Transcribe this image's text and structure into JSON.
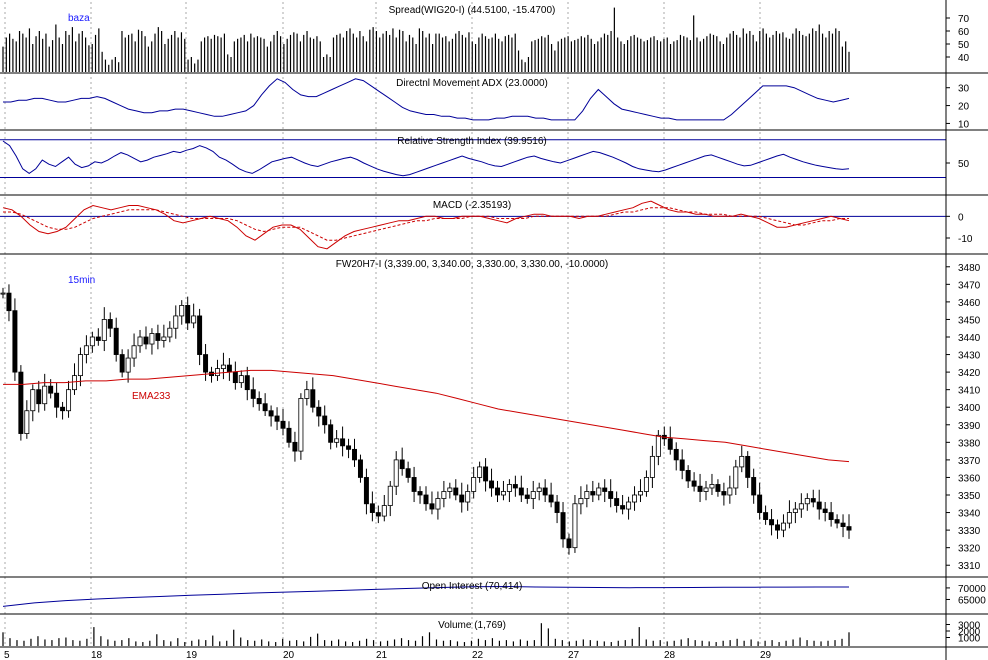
{
  "chart_data": {
    "type": "multi-panel-financial-chart",
    "colors": {
      "bars": "#000000",
      "indicator_blue": "#000099",
      "ema": "#cc0000",
      "annotation_blue": "#1a1aff",
      "grid": "#aaaaaa"
    },
    "date_labels": [
      "5",
      "18",
      "19",
      "20",
      "21",
      "22",
      "27",
      "28",
      "29"
    ],
    "panels": [
      {
        "key": "spread",
        "title": "Spread(WIG20-I) (44.5100, -15.4700)",
        "annotation": "baza",
        "type": "bar",
        "ylim": [
          30,
          80
        ],
        "yticks": [
          40,
          50,
          60,
          70
        ],
        "values": [
          48,
          55,
          58,
          54,
          52,
          60,
          58,
          55,
          62,
          50,
          56,
          60,
          54,
          58,
          48,
          53,
          65,
          55,
          50,
          60,
          57,
          63,
          52,
          58,
          60,
          55,
          49,
          50,
          57,
          62,
          44,
          38,
          34,
          38,
          40,
          36,
          60,
          55,
          57,
          58,
          52,
          61,
          60,
          56,
          48,
          52,
          58,
          63,
          60,
          50,
          54,
          57,
          60,
          55,
          59,
          54,
          38,
          40,
          35,
          38,
          52,
          55,
          56,
          54,
          57,
          56,
          55,
          58,
          42,
          40,
          52,
          54,
          55,
          57,
          52,
          58,
          55,
          56,
          55,
          54,
          48,
          52,
          57,
          60,
          56,
          50,
          54,
          57,
          59,
          58,
          52,
          57,
          60,
          55,
          54,
          56,
          52,
          40,
          42,
          40,
          55,
          57,
          58,
          55,
          60,
          62,
          58,
          55,
          60,
          56,
          52,
          61,
          63,
          60,
          55,
          58,
          60,
          57,
          62,
          55,
          61,
          60,
          52,
          57,
          55,
          50,
          62,
          60,
          55,
          58,
          50,
          58,
          58,
          55,
          56,
          52,
          54,
          58,
          60,
          57,
          55,
          59,
          52,
          50,
          55,
          58,
          56,
          54,
          55,
          58,
          54,
          52,
          56,
          57,
          55,
          58,
          45,
          38,
          36,
          40,
          52,
          53,
          54,
          56,
          55,
          57,
          50,
          45,
          52,
          54,
          55,
          56,
          52,
          53,
          54,
          56,
          55,
          57,
          54,
          50,
          52,
          55,
          58,
          57,
          60,
          78,
          55,
          52,
          50,
          53,
          56,
          57,
          55,
          54,
          52,
          53,
          55,
          56,
          53,
          52,
          54,
          55,
          50,
          52,
          53,
          57,
          56,
          55,
          53,
          72,
          55,
          52,
          54,
          56,
          58,
          57,
          56,
          52,
          50,
          55,
          58,
          60,
          57,
          55,
          62,
          58,
          60,
          57,
          52,
          60,
          62,
          58,
          55,
          57,
          60,
          58,
          59,
          55,
          54,
          58,
          62,
          60,
          57,
          56,
          58,
          62,
          60,
          65,
          58,
          55,
          60,
          58,
          62,
          60,
          48,
          52,
          44
        ]
      },
      {
        "key": "adx",
        "title": "Directnl Movement ADX (23.0000)",
        "type": "line",
        "ylim": [
          8,
          36
        ],
        "yticks": [
          10,
          20,
          30
        ],
        "series": [
          {
            "values": [
              22,
              22,
              23,
              23,
              24,
              24,
              23,
              22,
              22,
              23,
              24,
              24,
              25,
              24,
              22,
              20,
              18,
              17,
              16,
              16,
              17,
              17,
              18,
              18,
              17,
              16,
              15,
              14,
              14,
              15,
              16,
              17,
              20,
              26,
              31,
              35,
              33,
              29,
              26,
              25,
              25,
              27,
              29,
              31,
              33,
              35,
              34,
              31,
              28,
              25,
              22,
              19,
              17,
              16,
              15,
              15,
              14,
              14,
              13,
              13,
              12,
              12,
              12,
              13,
              13,
              14,
              14,
              14,
              13,
              13,
              12,
              12,
              12,
              12,
              17,
              24,
              29,
              25,
              21,
              18,
              17,
              16,
              15,
              14,
              13,
              13,
              12,
              12,
              12,
              12,
              12,
              12,
              12,
              15,
              19,
              23,
              27,
              31,
              31,
              31,
              31,
              30,
              28,
              26,
              24,
              23,
              22,
              23,
              24
            ]
          }
        ]
      },
      {
        "key": "rsi",
        "title": "Relative Strength Index (39.9516)",
        "type": "line",
        "ylim": [
          0,
          100
        ],
        "yticks": [
          50
        ],
        "reference_lines": [
          25,
          90
        ],
        "series": [
          {
            "values": [
              88,
              80,
              62,
              40,
              32,
              40,
              55,
              48,
              44,
              52,
              60,
              48,
              42,
              45,
              52,
              50,
              55,
              62,
              68,
              64,
              58,
              52,
              55,
              60,
              63,
              66,
              70,
              68,
              72,
              75,
              80,
              76,
              70,
              60,
              55,
              48,
              40,
              35,
              32,
              38,
              45,
              52,
              55,
              58,
              60,
              55,
              50,
              46,
              44,
              48,
              52,
              55,
              58,
              60,
              56,
              50,
              45,
              40,
              36,
              33,
              30,
              28,
              30,
              34,
              38,
              42,
              46,
              50,
              54,
              58,
              62,
              58,
              55,
              52,
              48,
              45,
              44,
              48,
              52,
              56,
              60,
              62,
              58,
              55,
              52,
              50,
              54,
              58,
              62,
              66,
              70,
              68,
              64,
              60,
              55,
              50,
              44,
              40,
              38,
              36,
              35,
              38,
              42,
              46,
              50,
              54,
              58,
              62,
              64,
              60,
              56,
              52,
              48,
              45,
              46,
              50,
              54,
              58,
              62,
              65,
              60,
              56,
              52,
              49,
              46,
              44,
              42,
              40,
              39,
              40
            ]
          }
        ]
      },
      {
        "key": "macd",
        "title": "MACD (-2.35193)",
        "type": "line",
        "ylim": [
          -16,
          8
        ],
        "yticks": [
          0,
          -10
        ],
        "reference_lines": [
          0
        ],
        "series": [
          {
            "values": [
              4,
              3,
              0,
              -4,
              -7,
              -8,
              -7,
              -5,
              -1,
              3,
              5,
              4,
              3,
              4,
              5,
              5,
              4,
              3,
              1,
              -2,
              -3,
              -2,
              -1,
              0,
              -1,
              -2,
              -5,
              -9,
              -11,
              -8,
              -5,
              -4,
              -4,
              -6,
              -10,
              -14,
              -15,
              -12,
              -9,
              -7,
              -6,
              -5,
              -4,
              -3,
              -2,
              -2,
              -1,
              0,
              0,
              -1,
              -1,
              0,
              0,
              0,
              -1,
              -2,
              -3,
              -1,
              0,
              1,
              1,
              0,
              0,
              0,
              -1,
              0,
              0,
              1,
              2,
              3,
              4,
              6,
              7,
              5,
              3,
              2,
              2,
              1,
              1,
              0,
              0,
              0,
              1,
              0,
              -1,
              -3,
              -5,
              -5,
              -4,
              -3,
              -2,
              -1,
              0,
              -1,
              -2
            ]
          },
          {
            "values": [
              2,
              2,
              1,
              -1,
              -3,
              -5,
              -6,
              -6,
              -5,
              -3,
              -1,
              0,
              1,
              2,
              3,
              3,
              3,
              3,
              2,
              1,
              0,
              -1,
              -1,
              -1,
              -1,
              -1,
              -2,
              -4,
              -6,
              -7,
              -6,
              -5,
              -5,
              -5,
              -7,
              -9,
              -11,
              -11,
              -10,
              -9,
              -8,
              -7,
              -6,
              -5,
              -4,
              -3,
              -2,
              -2,
              -1,
              -1,
              -1,
              -1,
              0,
              0,
              0,
              -1,
              -1,
              -1,
              -1,
              0,
              0,
              0,
              0,
              0,
              0,
              0,
              0,
              0,
              1,
              2,
              2,
              3,
              4,
              4,
              4,
              3,
              2,
              2,
              1,
              1,
              1,
              0,
              0,
              0,
              0,
              -1,
              -2,
              -3,
              -4,
              -4,
              -3,
              -2,
              -2,
              -1,
              -1
            ]
          }
        ]
      },
      {
        "key": "price",
        "title": "FW20H7-I (3,339.00, 3,340.00, 3,330.00, 3,330.00, -10.0000)",
        "interval_label": "15min",
        "ema_label": "EMA233",
        "type": "candlestick",
        "ylim": [
          3305,
          3485
        ],
        "yticks": [
          3310,
          3320,
          3330,
          3340,
          3350,
          3360,
          3370,
          3380,
          3390,
          3400,
          3410,
          3420,
          3430,
          3440,
          3450,
          3460,
          3470,
          3480
        ],
        "closes": [
          3465,
          3455,
          3420,
          3385,
          3398,
          3410,
          3402,
          3412,
          3408,
          3400,
          3398,
          3410,
          3418,
          3430,
          3435,
          3440,
          3438,
          3450,
          3445,
          3430,
          3420,
          3428,
          3435,
          3440,
          3436,
          3442,
          3438,
          3440,
          3445,
          3452,
          3458,
          3448,
          3452,
          3430,
          3420,
          3418,
          3422,
          3424,
          3420,
          3414,
          3418,
          3410,
          3405,
          3402,
          3398,
          3395,
          3392,
          3388,
          3380,
          3375,
          3405,
          3410,
          3400,
          3395,
          3390,
          3380,
          3382,
          3378,
          3376,
          3370,
          3360,
          3345,
          3340,
          3338,
          3344,
          3355,
          3370,
          3365,
          3360,
          3352,
          3350,
          3345,
          3342,
          3348,
          3352,
          3354,
          3350,
          3346,
          3352,
          3360,
          3366,
          3358,
          3354,
          3350,
          3352,
          3356,
          3354,
          3350,
          3348,
          3352,
          3354,
          3350,
          3346,
          3340,
          3325,
          3320,
          3345,
          3348,
          3352,
          3350,
          3354,
          3352,
          3348,
          3344,
          3342,
          3346,
          3350,
          3352,
          3360,
          3372,
          3384,
          3382,
          3376,
          3370,
          3364,
          3358,
          3355,
          3352,
          3354,
          3356,
          3352,
          3350,
          3354,
          3366,
          3372,
          3360,
          3350,
          3340,
          3336,
          3333,
          3330,
          3334,
          3340,
          3342,
          3345,
          3348,
          3346,
          3342,
          3340,
          3336,
          3334,
          3332,
          3330
        ],
        "ema233": [
          3413,
          3413,
          3414,
          3414,
          3415,
          3415,
          3416,
          3416,
          3417,
          3418,
          3419,
          3420,
          3421,
          3421,
          3420,
          3419,
          3418,
          3416,
          3414,
          3412,
          3410,
          3408,
          3405,
          3402,
          3399,
          3397,
          3395,
          3393,
          3391,
          3389,
          3387,
          3385,
          3383,
          3382,
          3381,
          3380,
          3378,
          3376,
          3374,
          3372,
          3370,
          3369
        ]
      },
      {
        "key": "oi",
        "title": "Open Interest (70,414)",
        "type": "line",
        "ylim": [
          60000,
          73000
        ],
        "yticks": [
          65000,
          70000
        ],
        "series": [
          {
            "values": [
              62000,
              63500,
              64500,
              65200,
              65800,
              66300,
              66800,
              67300,
              67800,
              68200,
              68600,
              69000,
              69400,
              69800,
              70200,
              70500,
              70600,
              70400,
              70300,
              70200,
              70100,
              70150,
              70200,
              70250,
              70300,
              70350,
              70400,
              70414
            ]
          }
        ]
      },
      {
        "key": "volume",
        "title": "Volume (1,769)",
        "type": "bar",
        "ylim": [
          0,
          4000
        ],
        "yticks": [
          1000,
          2000,
          3000
        ],
        "values": [
          1800,
          900,
          600,
          500,
          800,
          1200,
          700,
          600,
          900,
          1000,
          600,
          500,
          800,
          2600,
          1200,
          700,
          500,
          600,
          900,
          400,
          300,
          500,
          1500,
          600,
          400,
          900,
          300,
          500,
          700,
          600,
          1300,
          400,
          500,
          2200,
          1000,
          600,
          500,
          700,
          400,
          300,
          800,
          500,
          600,
          400,
          1100,
          1600,
          600,
          500,
          700,
          400,
          300,
          500,
          800,
          600,
          400,
          500,
          700,
          900,
          600,
          500,
          1200,
          1800,
          700,
          500,
          600,
          400,
          300,
          500,
          800,
          600,
          900,
          500,
          600,
          400,
          700,
          500,
          600,
          3200,
          2400,
          800,
          600,
          400,
          500,
          700,
          600,
          500,
          400,
          300,
          500,
          600,
          800,
          2600,
          700,
          500,
          600,
          400,
          500,
          700,
          900,
          600,
          500,
          400,
          300,
          500,
          600,
          800,
          500,
          700,
          400,
          500,
          600,
          300,
          500,
          700,
          1000,
          600,
          500,
          400,
          500,
          600,
          800,
          1800
        ]
      }
    ]
  }
}
